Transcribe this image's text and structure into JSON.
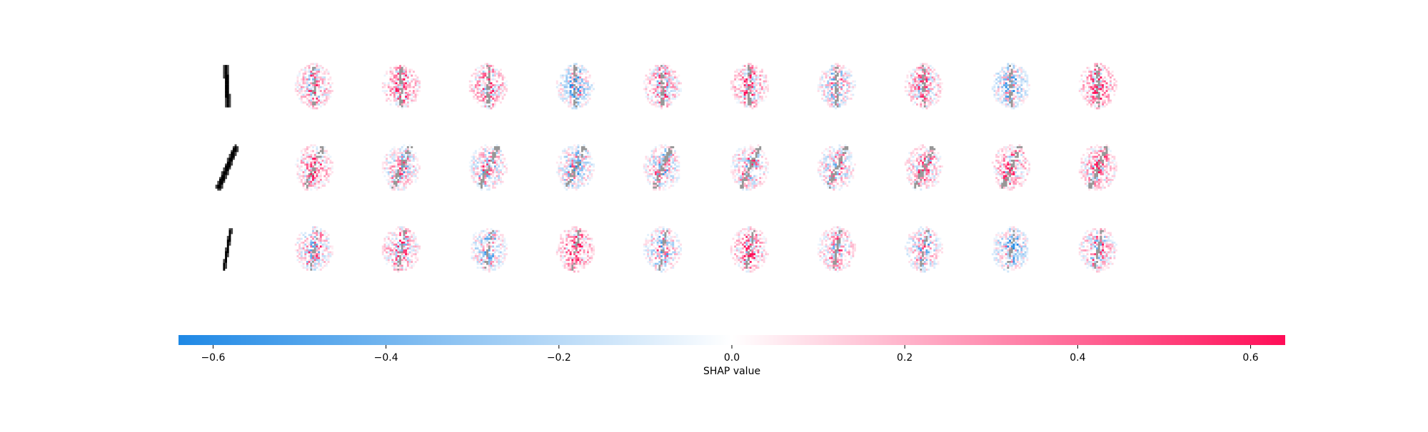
{
  "chart_data": {
    "type": "heatmap",
    "title": "",
    "rows": 3,
    "columns": 11,
    "columns_note": "column 1 is the input digit image; columns 2-11 are SHAP explanation maps",
    "input_images": [
      {
        "row": 1,
        "digit_pose": "vertical"
      },
      {
        "row": 2,
        "digit_pose": "slanted"
      },
      {
        "row": 3,
        "digit_pose": "thin-slanted"
      }
    ],
    "colorbar": {
      "label": "SHAP value",
      "range": [
        -0.64,
        0.64
      ],
      "ticks": [
        -0.6,
        -0.4,
        -0.2,
        0.0,
        0.2,
        0.4,
        0.6
      ],
      "tick_labels": [
        "−0.6",
        "−0.4",
        "−0.2",
        "0.0",
        "0.2",
        "0.4",
        "0.6"
      ],
      "colors": {
        "negative": "#1e88e5",
        "zero": "#ffffff",
        "positive": "#ff0d57"
      }
    },
    "grid": false,
    "legend": "bottom"
  }
}
